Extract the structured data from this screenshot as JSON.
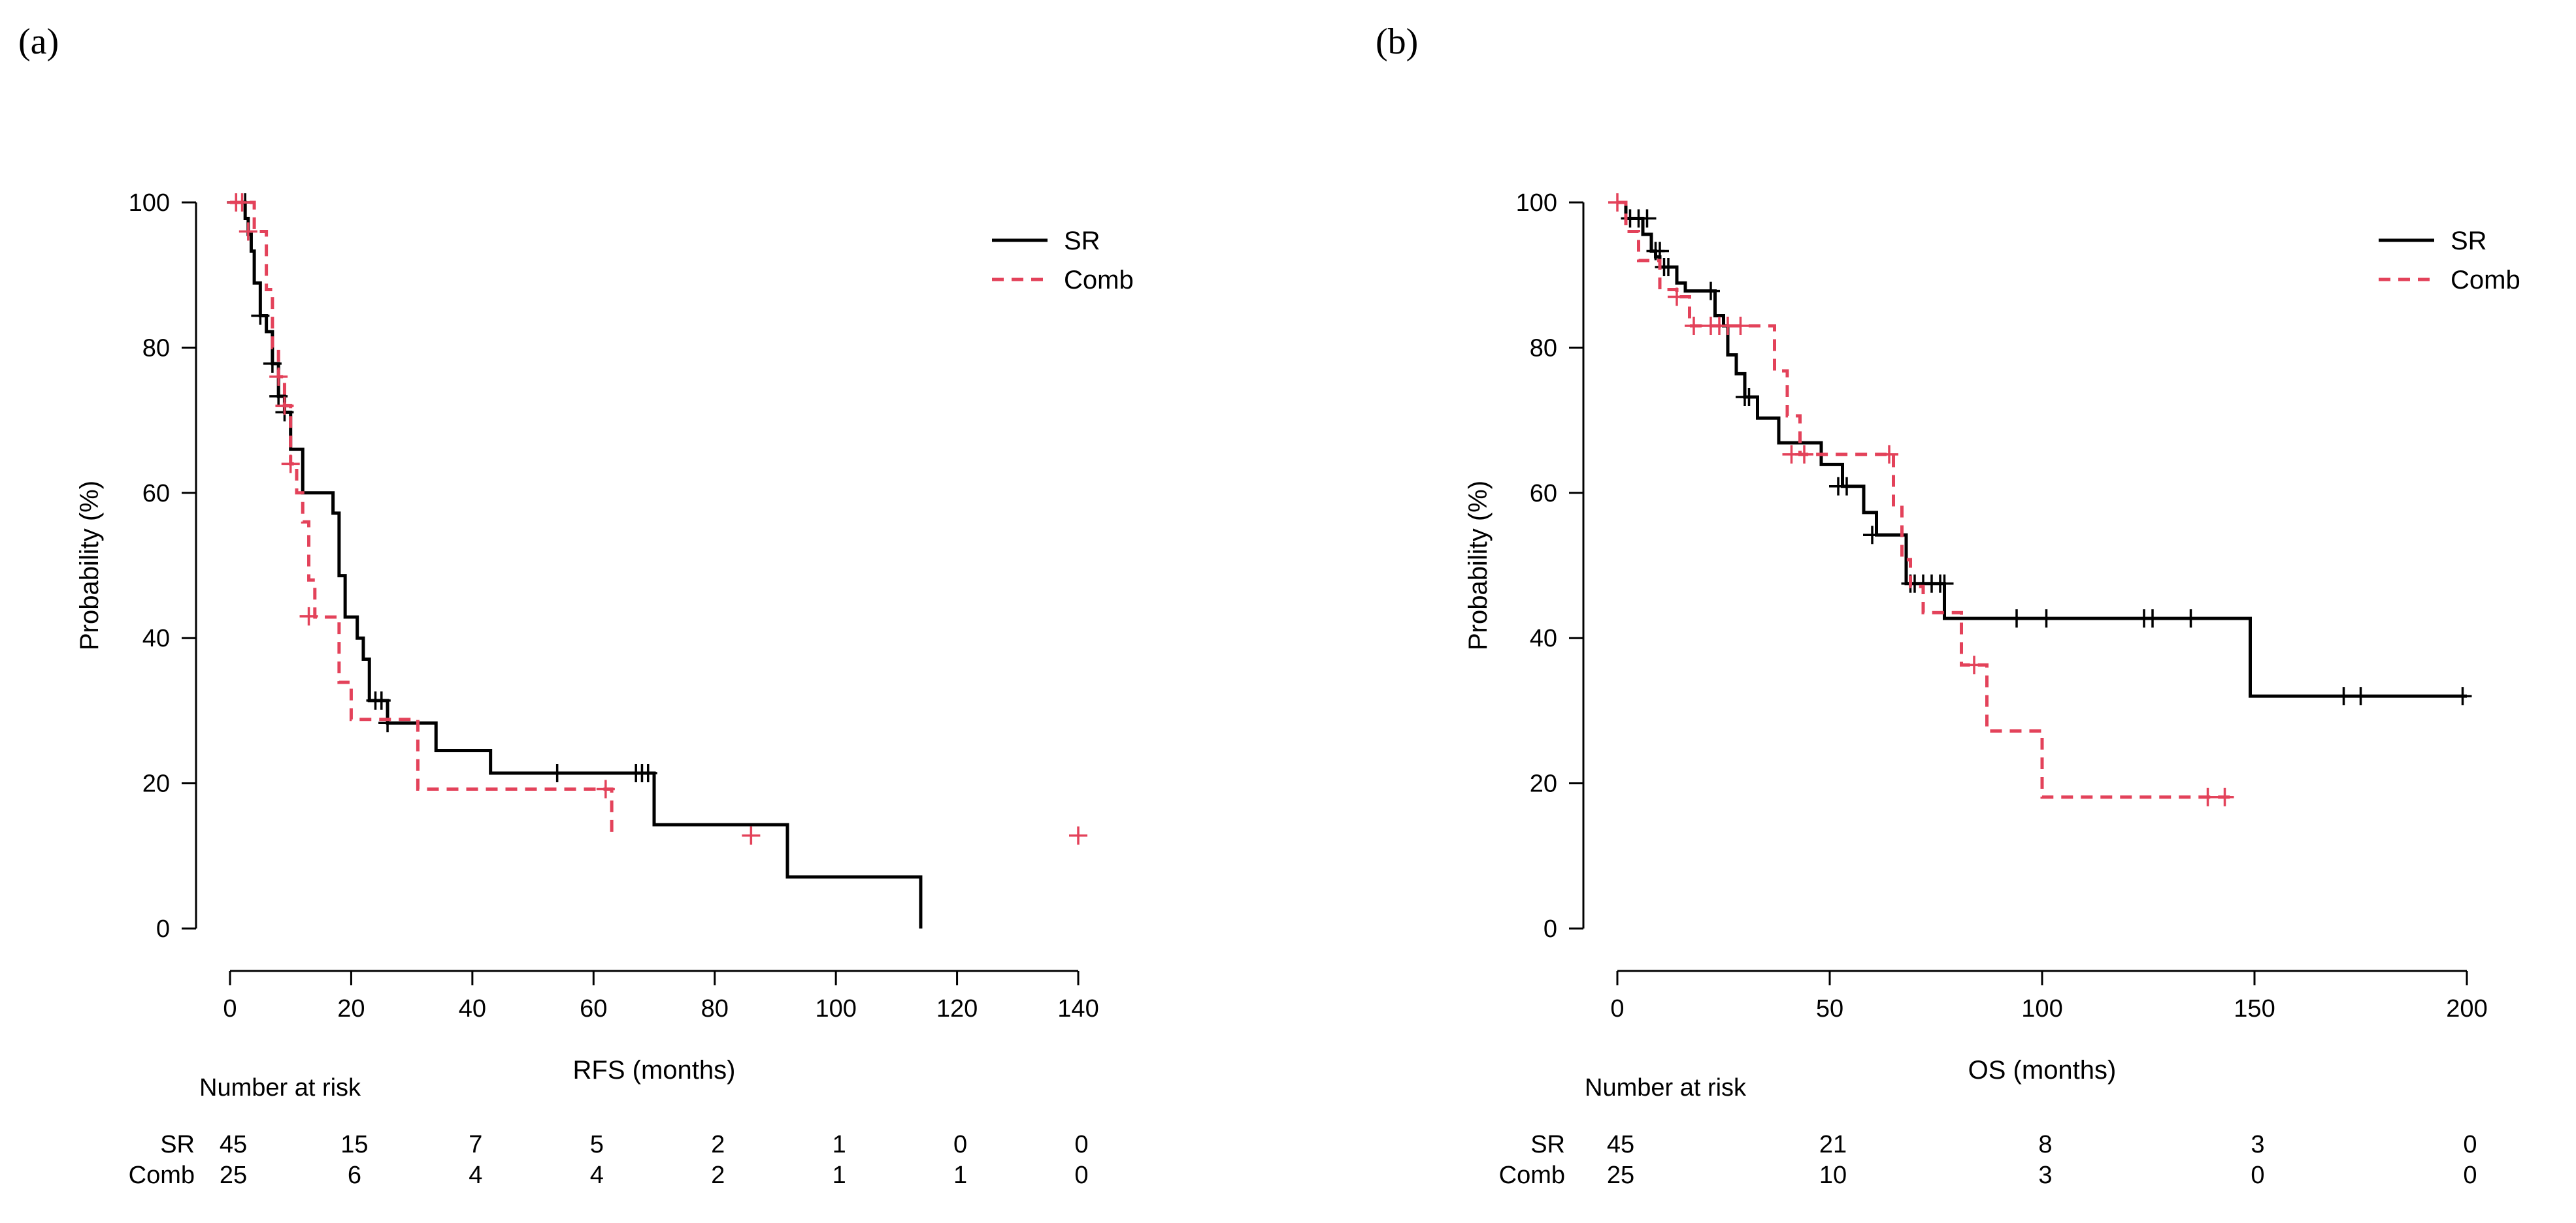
{
  "colors": {
    "sr": "#000000",
    "comb": "#e3425a"
  },
  "chart_data": [
    {
      "type": "line",
      "panel_label": "(a)",
      "title": "",
      "xlabel": "RFS (months)",
      "ylabel": "Probability (%)",
      "xlim": [
        0,
        140
      ],
      "ylim": [
        0,
        100
      ],
      "xticks": [
        0,
        20,
        40,
        60,
        80,
        100,
        120,
        140
      ],
      "yticks": [
        0,
        20,
        40,
        60,
        80,
        100
      ],
      "legend_position": "top-right",
      "series": [
        {
          "name": "SR",
          "style": "solid",
          "x": [
            0,
            2.5,
            3,
            3.5,
            4,
            5,
            6,
            7,
            8,
            9,
            10,
            12,
            17,
            18,
            19,
            21,
            22,
            23,
            26,
            34,
            43,
            70,
            92,
            114
          ],
          "y": [
            100,
            97.8,
            95.6,
            93.3,
            88.9,
            84.4,
            82.2,
            77.8,
            73.3,
            71.1,
            66,
            60,
            57.2,
            48.6,
            42.9,
            40,
            37.1,
            31.4,
            28.3,
            24.5,
            21.4,
            14.3,
            7.1,
            0
          ],
          "censor_x": [
            1,
            2.5,
            5,
            7,
            8,
            9,
            24,
            25,
            26,
            54,
            67,
            68,
            69
          ],
          "censor_y": [
            100,
            100,
            84.4,
            77.8,
            73.3,
            71.1,
            31.4,
            31.4,
            28.3,
            21.4,
            21.4,
            21.4,
            21.4
          ]
        },
        {
          "name": "Comb",
          "style": "dashed",
          "x": [
            0,
            4,
            6,
            7,
            8,
            9,
            10,
            11,
            12,
            13,
            14,
            18,
            20,
            31,
            63
          ],
          "y": [
            100,
            96,
            88,
            80,
            76,
            72,
            64,
            60,
            56,
            48,
            42.9,
            33.9,
            28.8,
            19.2,
            12.8
          ],
          "censor_x": [
            1,
            2,
            3,
            8,
            9,
            10,
            13,
            62,
            86,
            140
          ],
          "censor_y": [
            100,
            100,
            96,
            76,
            72,
            64,
            43,
            19.2,
            12.8,
            12.8
          ]
        }
      ],
      "risk_table": {
        "title": "Number at risk",
        "times": [
          0,
          20,
          40,
          60,
          80,
          100,
          120,
          140
        ],
        "rows": [
          {
            "label": "SR",
            "values": [
              "45",
              "15",
              "7",
              "5",
              "2",
              "1",
              "0",
              "0"
            ]
          },
          {
            "label": "Comb",
            "values": [
              "25",
              "6",
              "4",
              "4",
              "2",
              "1",
              "1",
              "0"
            ]
          }
        ]
      }
    },
    {
      "type": "line",
      "panel_label": "(b)",
      "title": "",
      "xlabel": "OS (months)",
      "ylabel": "Probability (%)",
      "xlim": [
        0,
        200
      ],
      "ylim": [
        0,
        100
      ],
      "xticks": [
        0,
        50,
        100,
        150,
        200
      ],
      "yticks": [
        0,
        20,
        40,
        60,
        80,
        100
      ],
      "legend_position": "top-right",
      "series": [
        {
          "name": "SR",
          "style": "solid",
          "x": [
            0,
            2,
            6,
            8,
            9,
            10,
            14,
            16,
            23,
            25,
            26,
            28,
            30,
            33,
            38,
            44,
            48,
            53,
            58,
            61,
            68,
            77,
            149,
            200
          ],
          "y": [
            100,
            97.8,
            95.6,
            93.3,
            92.5,
            91.1,
            88.9,
            87.8,
            84.4,
            83,
            79,
            76.4,
            73.2,
            70.3,
            66.9,
            66.9,
            63.9,
            60.9,
            57.3,
            54.2,
            47.5,
            42.7,
            32,
            32
          ],
          "censor_x": [
            3,
            5,
            7,
            9,
            10,
            11,
            12,
            22,
            30,
            31,
            52,
            54,
            60,
            69,
            70,
            72,
            74,
            76,
            77,
            94,
            101,
            124,
            126,
            135,
            171,
            175,
            199
          ],
          "censor_y": [
            97.8,
            97.8,
            97.8,
            93.3,
            93.3,
            91.1,
            91.1,
            87.8,
            73.2,
            73.2,
            60.9,
            60.9,
            54.2,
            47.5,
            47.5,
            47.5,
            47.5,
            47.5,
            47.5,
            42.7,
            42.7,
            42.7,
            42.7,
            42.7,
            32,
            32,
            32
          ]
        },
        {
          "name": "Comb",
          "style": "dashed",
          "x": [
            0,
            2,
            5,
            10,
            14,
            15,
            17,
            26,
            29,
            37,
            40,
            43,
            65,
            67,
            69,
            72,
            76,
            81,
            87,
            100,
            145
          ],
          "y": [
            100,
            96,
            92,
            88,
            87,
            87,
            83,
            83,
            83,
            76.8,
            70.6,
            65.3,
            58,
            50.8,
            47.1,
            43.5,
            43.5,
            36.3,
            27.2,
            18.1,
            18.1
          ],
          "censor_x": [
            0,
            14,
            18,
            22,
            24,
            26,
            29,
            41,
            44,
            64,
            84,
            139,
            143
          ],
          "censor_y": [
            100,
            87,
            83,
            83,
            83,
            83,
            83,
            65.3,
            65.3,
            65.3,
            36.3,
            18.1,
            18.1
          ]
        }
      ],
      "risk_table": {
        "title": "Number at risk",
        "times": [
          0,
          50,
          100,
          150,
          200
        ],
        "rows": [
          {
            "label": "SR",
            "values": [
              "45",
              "21",
              "8",
              "3",
              "0"
            ]
          },
          {
            "label": "Comb",
            "values": [
              "25",
              "10",
              "3",
              "0",
              "0"
            ]
          }
        ]
      }
    }
  ]
}
